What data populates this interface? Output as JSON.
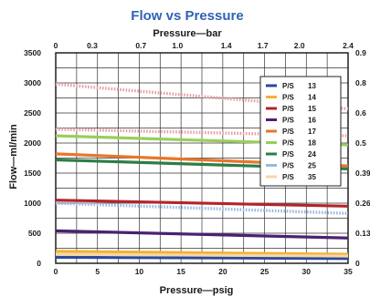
{
  "chart_data": {
    "type": "line",
    "title": "Flow vs Pressure",
    "xlabel": "Pressure—psig",
    "x2label": "Pressure—bar",
    "ylabel": "Flow—ml/min",
    "xlim": [
      0,
      35
    ],
    "ylim": [
      0,
      3500
    ],
    "x_ticks": [
      "0",
      "5",
      "10",
      "15",
      "20",
      "25",
      "30",
      "35"
    ],
    "x_tick_values": [
      0,
      5,
      10,
      15,
      20,
      25,
      30,
      35
    ],
    "x2_ticks": [
      "0",
      "0.3",
      "0.7",
      "1.0",
      "1.4",
      "1.7",
      "2.0",
      "2.4"
    ],
    "x2_tick_values": [
      0,
      0.3,
      0.7,
      1.0,
      1.4,
      1.7,
      2.0,
      2.4
    ],
    "y_ticks": [
      "0",
      "500",
      "1000",
      "1500",
      "2000",
      "2500",
      "3000",
      "3500"
    ],
    "y_tick_values": [
      0,
      500,
      1000,
      1500,
      2000,
      2500,
      3000,
      3500
    ],
    "y2_ticks": [
      "0",
      "0.13",
      "0.26",
      "0.39",
      "0.5",
      "0.6",
      "0.8",
      "0.9"
    ],
    "y2_tick_values": [
      0,
      500,
      1000,
      1500,
      2000,
      2500,
      3000,
      3500
    ],
    "grid": true,
    "legend_position": "right",
    "legend_prefix": "P/S",
    "series": [
      {
        "name": "13",
        "color": "#2b4a9c",
        "dotted": false,
        "x": [
          0,
          35
        ],
        "values": [
          100,
          80
        ]
      },
      {
        "name": "14",
        "color": "#f2b233",
        "dotted": false,
        "x": [
          0,
          35
        ],
        "values": [
          200,
          150
        ]
      },
      {
        "name": "15",
        "color": "#b5232a",
        "dotted": false,
        "x": [
          0,
          35
        ],
        "values": [
          1050,
          950
        ]
      },
      {
        "name": "16",
        "color": "#4a2270",
        "dotted": false,
        "x": [
          0,
          35
        ],
        "values": [
          540,
          420
        ]
      },
      {
        "name": "17",
        "color": "#e8762b",
        "dotted": false,
        "x": [
          0,
          35
        ],
        "values": [
          1820,
          1620
        ]
      },
      {
        "name": "18",
        "color": "#9acd5b",
        "dotted": false,
        "x": [
          0,
          35
        ],
        "values": [
          2120,
          1970
        ]
      },
      {
        "name": "24",
        "color": "#2e7d46",
        "dotted": false,
        "x": [
          0,
          35
        ],
        "values": [
          1720,
          1570
        ]
      },
      {
        "name": "25",
        "color": "#9ab8e0",
        "dotted": true,
        "x": [
          0,
          35
        ],
        "values": [
          1000,
          830
        ]
      },
      {
        "name": "35",
        "color": "#f6d7a6",
        "dotted": false,
        "x": [
          0,
          35
        ],
        "values": [
          150,
          120
        ]
      },
      {
        "name": "",
        "color": "#e8a0a8",
        "dotted": true,
        "x": [
          0,
          35
        ],
        "values": [
          2980,
          2570
        ]
      },
      {
        "name": "",
        "color": "#e8a0a8",
        "dotted": true,
        "x": [
          0,
          35
        ],
        "values": [
          2230,
          2120
        ]
      }
    ]
  }
}
